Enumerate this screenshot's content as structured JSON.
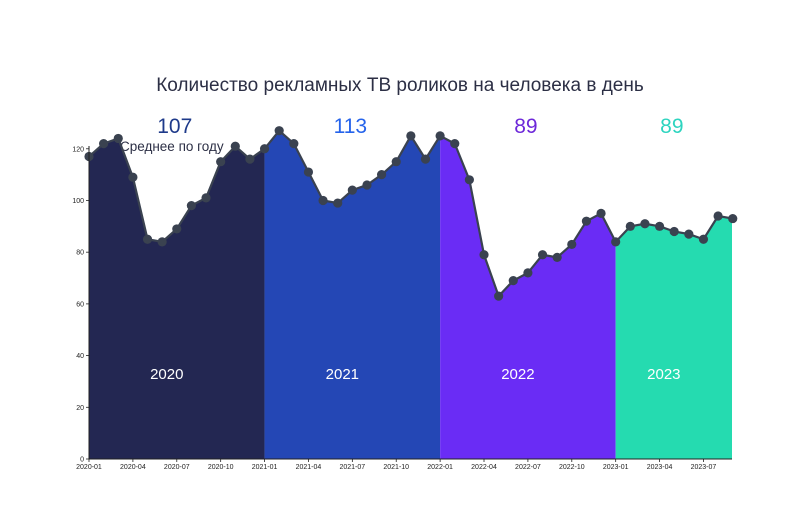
{
  "chart_data": {
    "type": "area",
    "title": "Количество рекламных ТВ роликов на человека в день",
    "ylim": [
      0,
      135
    ],
    "y_ticks": [
      0,
      20,
      40,
      60,
      80,
      100,
      120
    ],
    "x_ticks": [
      "2020-01",
      "2020-04",
      "2020-07",
      "2020-10",
      "2021-01",
      "2021-04",
      "2021-07",
      "2021-10",
      "2022-01",
      "2022-04",
      "2022-07",
      "2022-10",
      "2023-01",
      "2023-04",
      "2023-07"
    ],
    "avg_caption": "Среднее по году",
    "grid": false,
    "line_color": "#3a4250",
    "series": [
      {
        "year": "2020",
        "avg_label": "107",
        "fill_color": "#232752",
        "avg_color": "#1e3a8a",
        "x": [
          "2020-01",
          "2020-02",
          "2020-03",
          "2020-04",
          "2020-05",
          "2020-06",
          "2020-07",
          "2020-08",
          "2020-09",
          "2020-10",
          "2020-11",
          "2020-12"
        ],
        "values": [
          117,
          122,
          124,
          109,
          85,
          84,
          89,
          98,
          101,
          115,
          121,
          116
        ]
      },
      {
        "year": "2021",
        "avg_label": "113",
        "fill_color": "#2447b5",
        "avg_color": "#2563eb",
        "x": [
          "2021-01",
          "2021-02",
          "2021-03",
          "2021-04",
          "2021-05",
          "2021-06",
          "2021-07",
          "2021-08",
          "2021-09",
          "2021-10",
          "2021-11",
          "2021-12"
        ],
        "values": [
          120,
          127,
          122,
          111,
          100,
          99,
          104,
          106,
          110,
          115,
          125,
          116
        ]
      },
      {
        "year": "2022",
        "avg_label": "89",
        "fill_color": "#6a2cf5",
        "avg_color": "#6d28d9",
        "x": [
          "2022-01",
          "2022-02",
          "2022-03",
          "2022-04",
          "2022-05",
          "2022-06",
          "2022-07",
          "2022-08",
          "2022-09",
          "2022-10",
          "2022-11",
          "2022-12"
        ],
        "values": [
          125,
          122,
          108,
          79,
          63,
          69,
          72,
          79,
          78,
          83,
          92,
          95
        ]
      },
      {
        "year": "2023",
        "avg_label": "89",
        "fill_color": "#25dbb0",
        "avg_color": "#2dd4bf",
        "x": [
          "2023-01",
          "2023-02",
          "2023-03",
          "2023-04",
          "2023-05",
          "2023-06",
          "2023-07",
          "2023-08",
          "2023-09"
        ],
        "values": [
          84,
          90,
          91,
          90,
          88,
          87,
          85,
          94,
          93
        ]
      }
    ]
  }
}
